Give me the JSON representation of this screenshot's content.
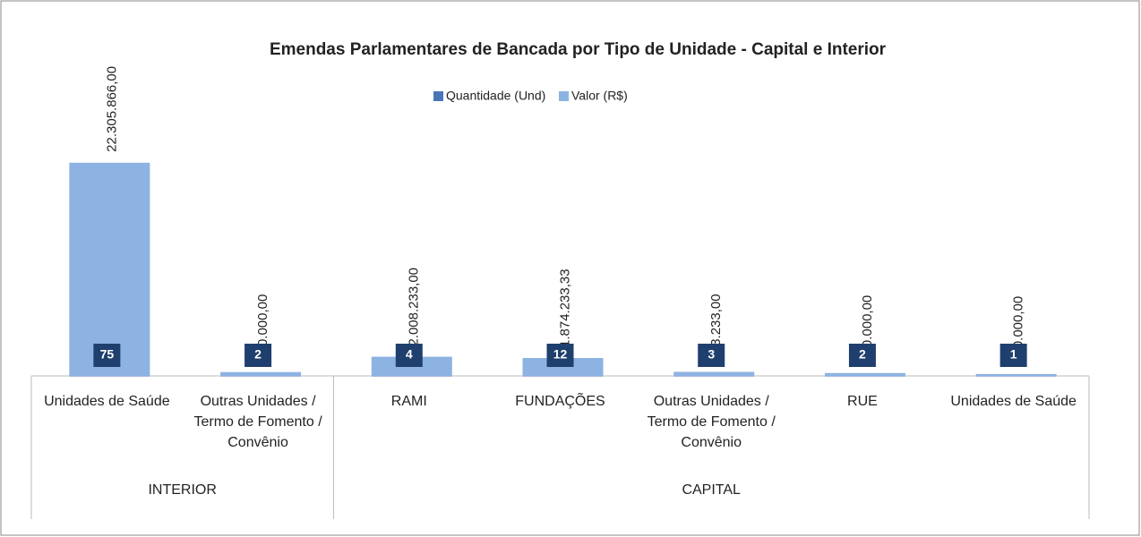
{
  "chart_data": {
    "type": "bar",
    "title": "Emendas Parlamentares de Bancada por Tipo de Unidade - Capital e Interior",
    "categories": [
      "Unidades de Saúde",
      "Outras Unidades / Termo de Fomento / Convênio",
      "RAMI",
      "FUNDAÇÕES",
      "Outras Unidades / Termo de Fomento / Convênio",
      "RUE",
      "Unidades de Saúde"
    ],
    "groups": [
      "INTERIOR",
      "INTERIOR",
      "CAPITAL",
      "CAPITAL",
      "CAPITAL",
      "CAPITAL",
      "CAPITAL"
    ],
    "series": [
      {
        "name": "Quantidade (Und)",
        "color": "#4a76b8",
        "label_color": "#1f3f6e",
        "values": [
          75,
          2,
          4,
          12,
          3,
          2,
          1
        ]
      },
      {
        "name": "Valor (R$)",
        "color": "#8db3e2",
        "values": [
          22305866.0,
          400000.0,
          2008233.0,
          1874233.33,
          423233.0,
          300000.0,
          200000.0
        ],
        "value_labels": [
          "22.305.866,00",
          "400.000,00",
          "2.008.233,00",
          "1.874.233,33",
          "423.233,00",
          "300.000,00",
          "200.000,00"
        ]
      }
    ],
    "ylim": [
      0,
      28000000
    ],
    "legend": "top"
  }
}
